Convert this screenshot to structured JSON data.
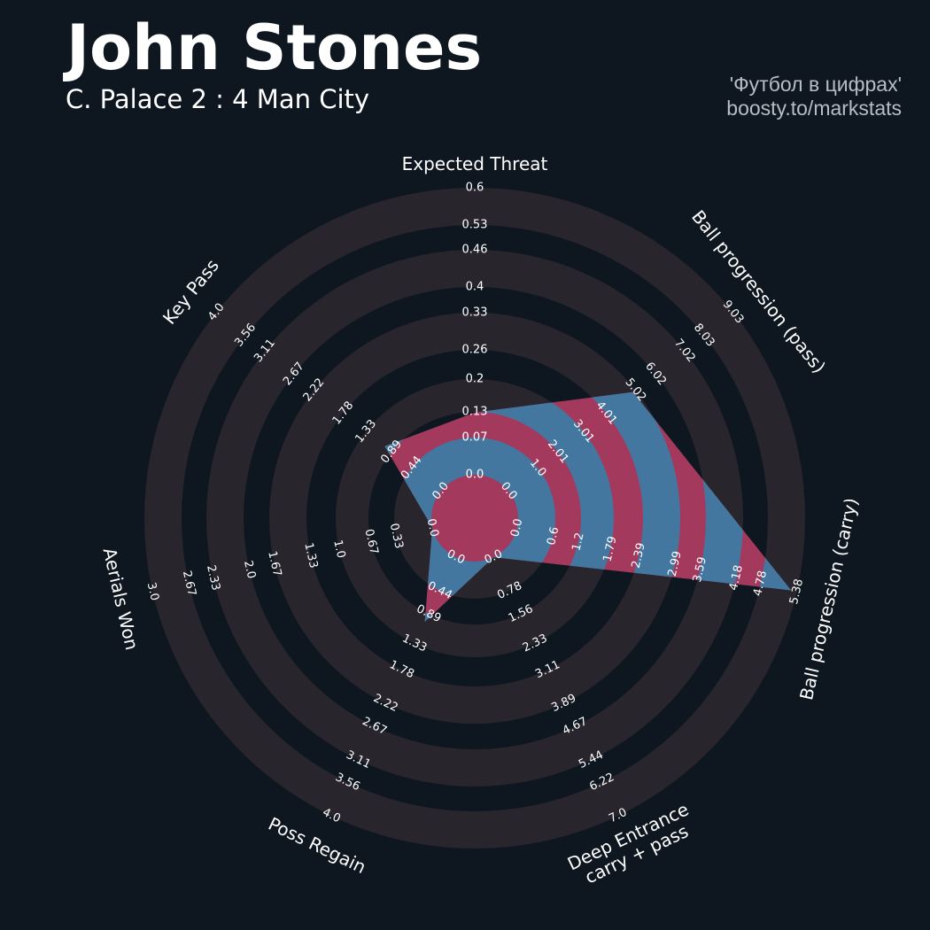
{
  "header": {
    "title": "John Stones",
    "subtitle": "C. Palace 2 : 4 Man City",
    "credit_line1": "'Футбол в цифрах'",
    "credit_line2": "boosty.to/markstats"
  },
  "colors": {
    "background": "#0e1720",
    "ring": "#28252c",
    "polygon_primary": "#a33a5e",
    "polygon_secondary": "#4477a0",
    "credits": "#b8bcc4"
  },
  "chart_data": {
    "type": "radar",
    "title": "John Stones",
    "subtitle": "C. Palace 2 : 4 Man City",
    "params": [
      {
        "label": [
          "Expected Threat"
        ],
        "value": 0.13,
        "range": [
          0.0,
          0.6
        ],
        "ticks": [
          "0.0",
          "0.07",
          "0.13",
          "0.2",
          "0.26",
          "0.33",
          "0.4",
          "0.46",
          "0.53",
          "0.6"
        ]
      },
      {
        "label": [
          "Ball progression (pass)"
        ],
        "value": 5.0,
        "range": [
          0.0,
          9.03
        ],
        "ticks": [
          "0.0",
          "1.0",
          "2.01",
          "3.01",
          "4.01",
          "5.02",
          "6.02",
          "7.02",
          "8.03",
          "9.03"
        ]
      },
      {
        "label": [
          "Ball progression (carry)"
        ],
        "value": 5.27,
        "range": [
          0.0,
          5.38
        ],
        "ticks": [
          "0.0",
          "0.6",
          "1.2",
          "1.79",
          "2.39",
          "2.99",
          "3.59",
          "4.18",
          "4.78",
          "5.38"
        ]
      },
      {
        "label": [
          "Deep Entrance",
          "carry + pass"
        ],
        "value": 0.0,
        "range": [
          0.0,
          7.0
        ],
        "ticks": [
          "0.0",
          "0.78",
          "1.56",
          "2.33",
          "3.11",
          "3.89",
          "4.67",
          "5.44",
          "6.22",
          "7.0"
        ]
      },
      {
        "label": [
          "Poss Regain"
        ],
        "value": 1.0,
        "range": [
          0.0,
          4.0
        ],
        "ticks": [
          "0.0",
          "0.44",
          "0.89",
          "1.33",
          "1.78",
          "2.22",
          "2.67",
          "3.11",
          "3.56",
          "4.0"
        ]
      },
      {
        "label": [
          "Aerials Won"
        ],
        "value": 0.0,
        "range": [
          0.0,
          3.0
        ],
        "ticks": [
          "0.0",
          "0.33",
          "0.67",
          "1.0",
          "1.33",
          "1.67",
          "2.0",
          "2.33",
          "2.67",
          "3.0"
        ]
      },
      {
        "label": [
          "Key Pass"
        ],
        "value": 1.0,
        "range": [
          0.0,
          4.0
        ],
        "ticks": [
          "0.0",
          "0.44",
          "0.89",
          "1.33",
          "1.78",
          "2.22",
          "2.67",
          "3.11",
          "3.56",
          "4.0"
        ]
      }
    ]
  }
}
